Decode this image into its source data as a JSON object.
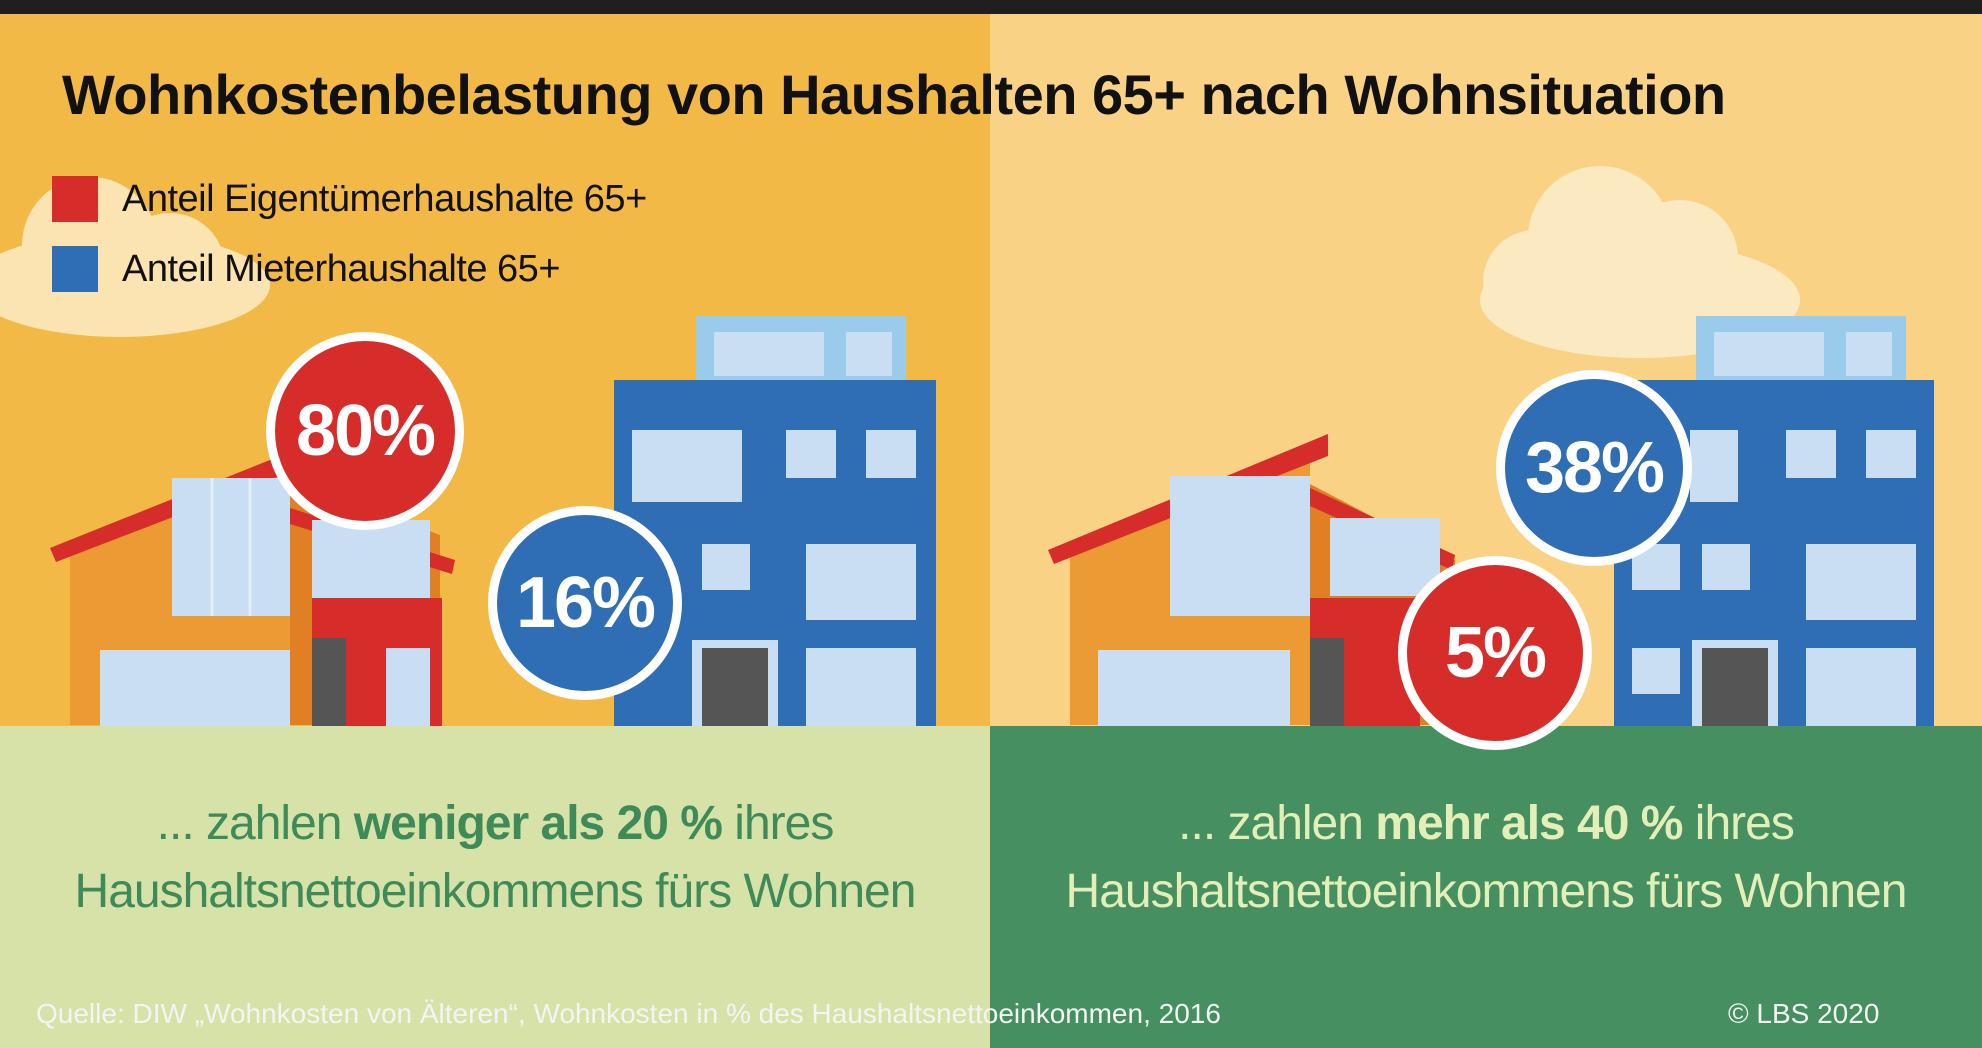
{
  "title": "Wohnkostenbelastung von Haushalten 65+ nach Wohnsituation",
  "legend": [
    {
      "label": "Anteil Eigentümerhaushalte 65+",
      "color": "#d62d2a"
    },
    {
      "label": "Anteil Mieterhaushalte 65+",
      "color": "#2f6db5"
    }
  ],
  "left": {
    "owner_share": "80%",
    "renter_share": "16%",
    "caption": {
      "pre": "... zahlen ",
      "bold": "weniger als 20 %",
      "post": " ihres",
      "line2": "Haushaltsnettoeinkommens fürs Wohnen"
    }
  },
  "right": {
    "owner_share": "5%",
    "renter_share": "38%",
    "caption": {
      "pre": "... zahlen ",
      "bold": "mehr als 40 %",
      "post": " ihres",
      "line2": "Haushaltsnettoeinkommens fürs Wohnen"
    }
  },
  "source": "Quelle: DIW „Wohnkosten von Älteren“, Wohnkosten in % des Haushaltsnettoeinkommen, 2016",
  "copyright": "© LBS 2020",
  "colors": {
    "owner_red": "#d62d2a",
    "renter_blue": "#2f6db5",
    "bg_left": "#f2b947",
    "bg_right": "#f9d285",
    "panel_left": "#d6e2a8",
    "panel_right": "#458f61",
    "text_green_dark": "#3e8a58",
    "text_green_light": "#e4eeb8"
  }
}
